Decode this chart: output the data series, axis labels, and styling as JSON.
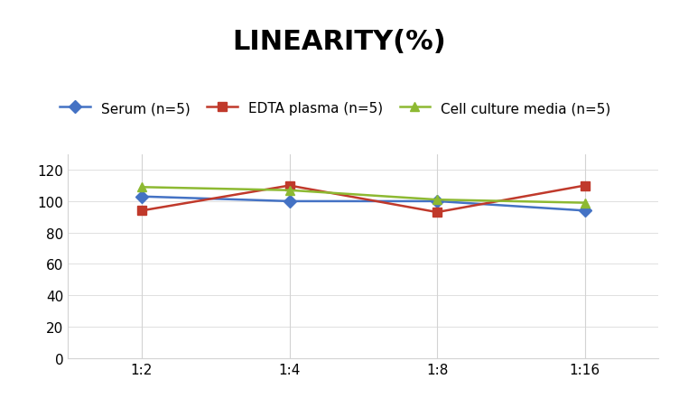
{
  "title": "LINEARITY(%)",
  "x_labels": [
    "1:2",
    "1:4",
    "1:8",
    "1:16"
  ],
  "x_positions": [
    0,
    1,
    2,
    3
  ],
  "series": [
    {
      "label": "Serum (n=5)",
      "color": "#4472C4",
      "marker": "D",
      "values": [
        103,
        100,
        100,
        94
      ]
    },
    {
      "label": "EDTA plasma (n=5)",
      "color": "#C0392B",
      "marker": "s",
      "values": [
        94,
        110,
        93,
        110
      ]
    },
    {
      "label": "Cell culture media (n=5)",
      "color": "#8DB932",
      "marker": "^",
      "values": [
        109,
        107,
        101,
        99
      ]
    }
  ],
  "ylim": [
    0,
    130
  ],
  "yticks": [
    0,
    20,
    40,
    60,
    80,
    100,
    120
  ],
  "background_color": "#ffffff",
  "title_fontsize": 22,
  "legend_fontsize": 11,
  "tick_fontsize": 11
}
